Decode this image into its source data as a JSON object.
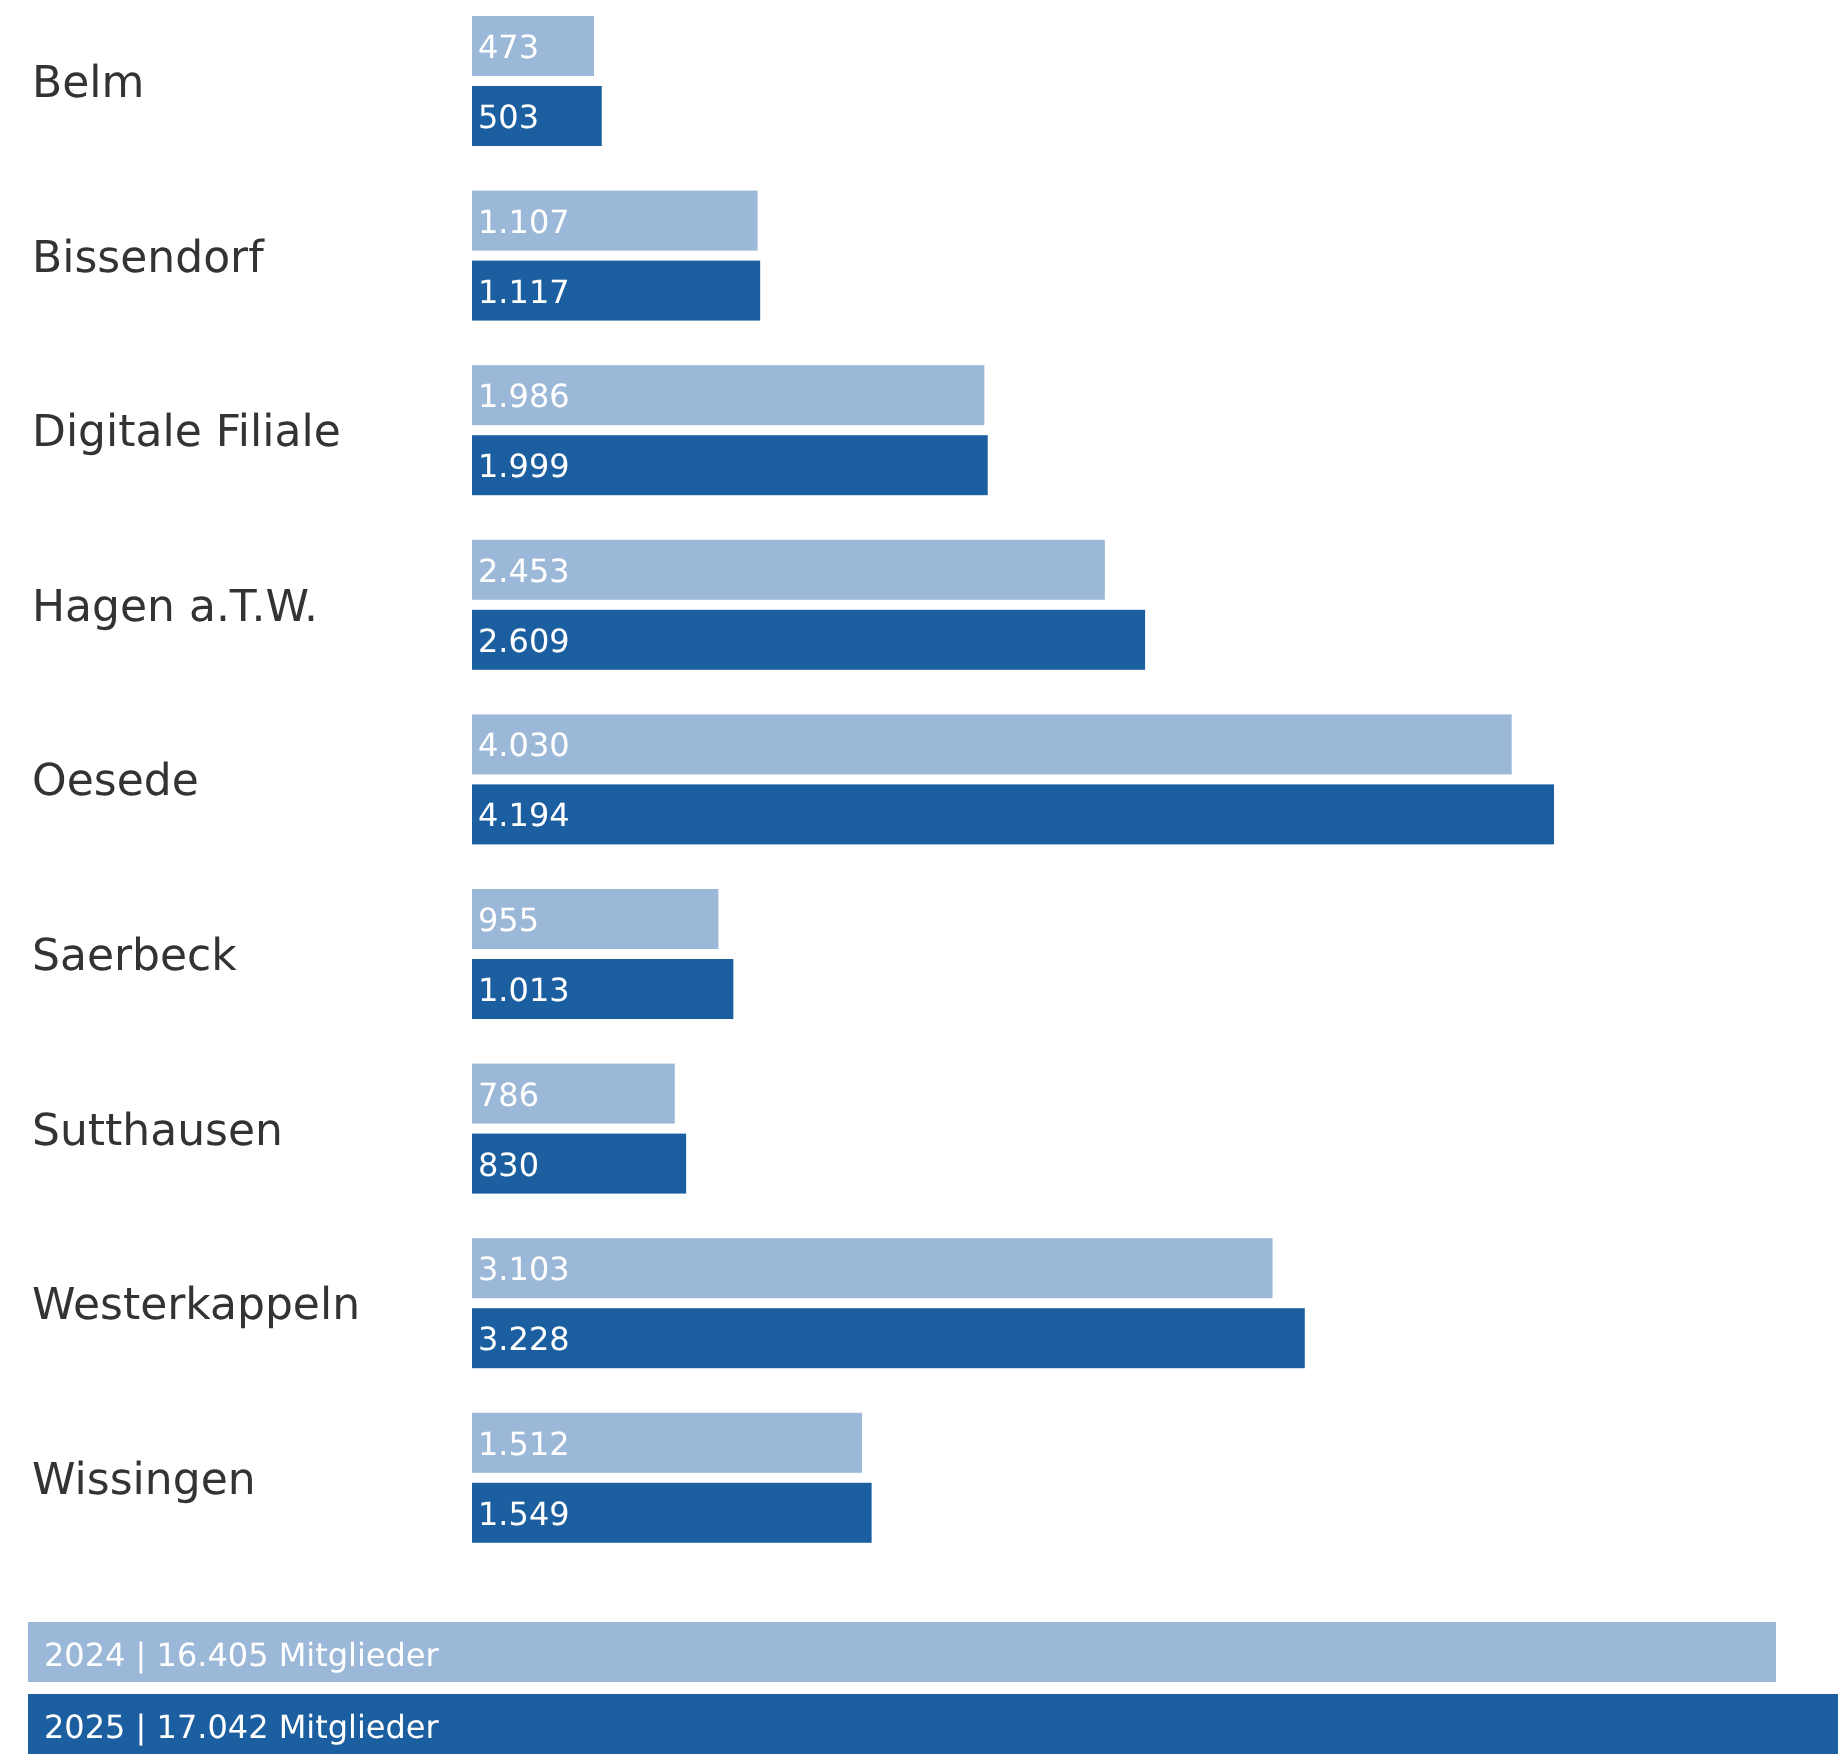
{
  "chart_data": {
    "type": "bar",
    "orientation": "horizontal",
    "categories": [
      "Belm",
      "Bissendorf",
      "Digitale Filiale",
      "Hagen a.T.W.",
      "Oesede",
      "Saerbeck",
      "Sutthausen",
      "Westerkappeln",
      "Wissingen"
    ],
    "series": [
      {
        "name": "2024 | 16.405 Mitglieder",
        "color": "#9cb8d8",
        "values": [
          473,
          1107,
          1986,
          2453,
          4030,
          955,
          786,
          3103,
          1512
        ],
        "value_labels": [
          "473",
          "1.107",
          "1.986",
          "2.453",
          "4.030",
          "955",
          "786",
          "3.103",
          "1.512"
        ]
      },
      {
        "name": "2025 | 17.042 Mitglieder",
        "color": "#1c5fa0",
        "values": [
          503,
          1117,
          1999,
          2609,
          4194,
          1013,
          830,
          3228,
          1549
        ],
        "value_labels": [
          "503",
          "1.117",
          "1.999",
          "2.609",
          "4.194",
          "1.013",
          "830",
          "3.228",
          "1.549"
        ]
      }
    ],
    "legend": "bottom"
  }
}
